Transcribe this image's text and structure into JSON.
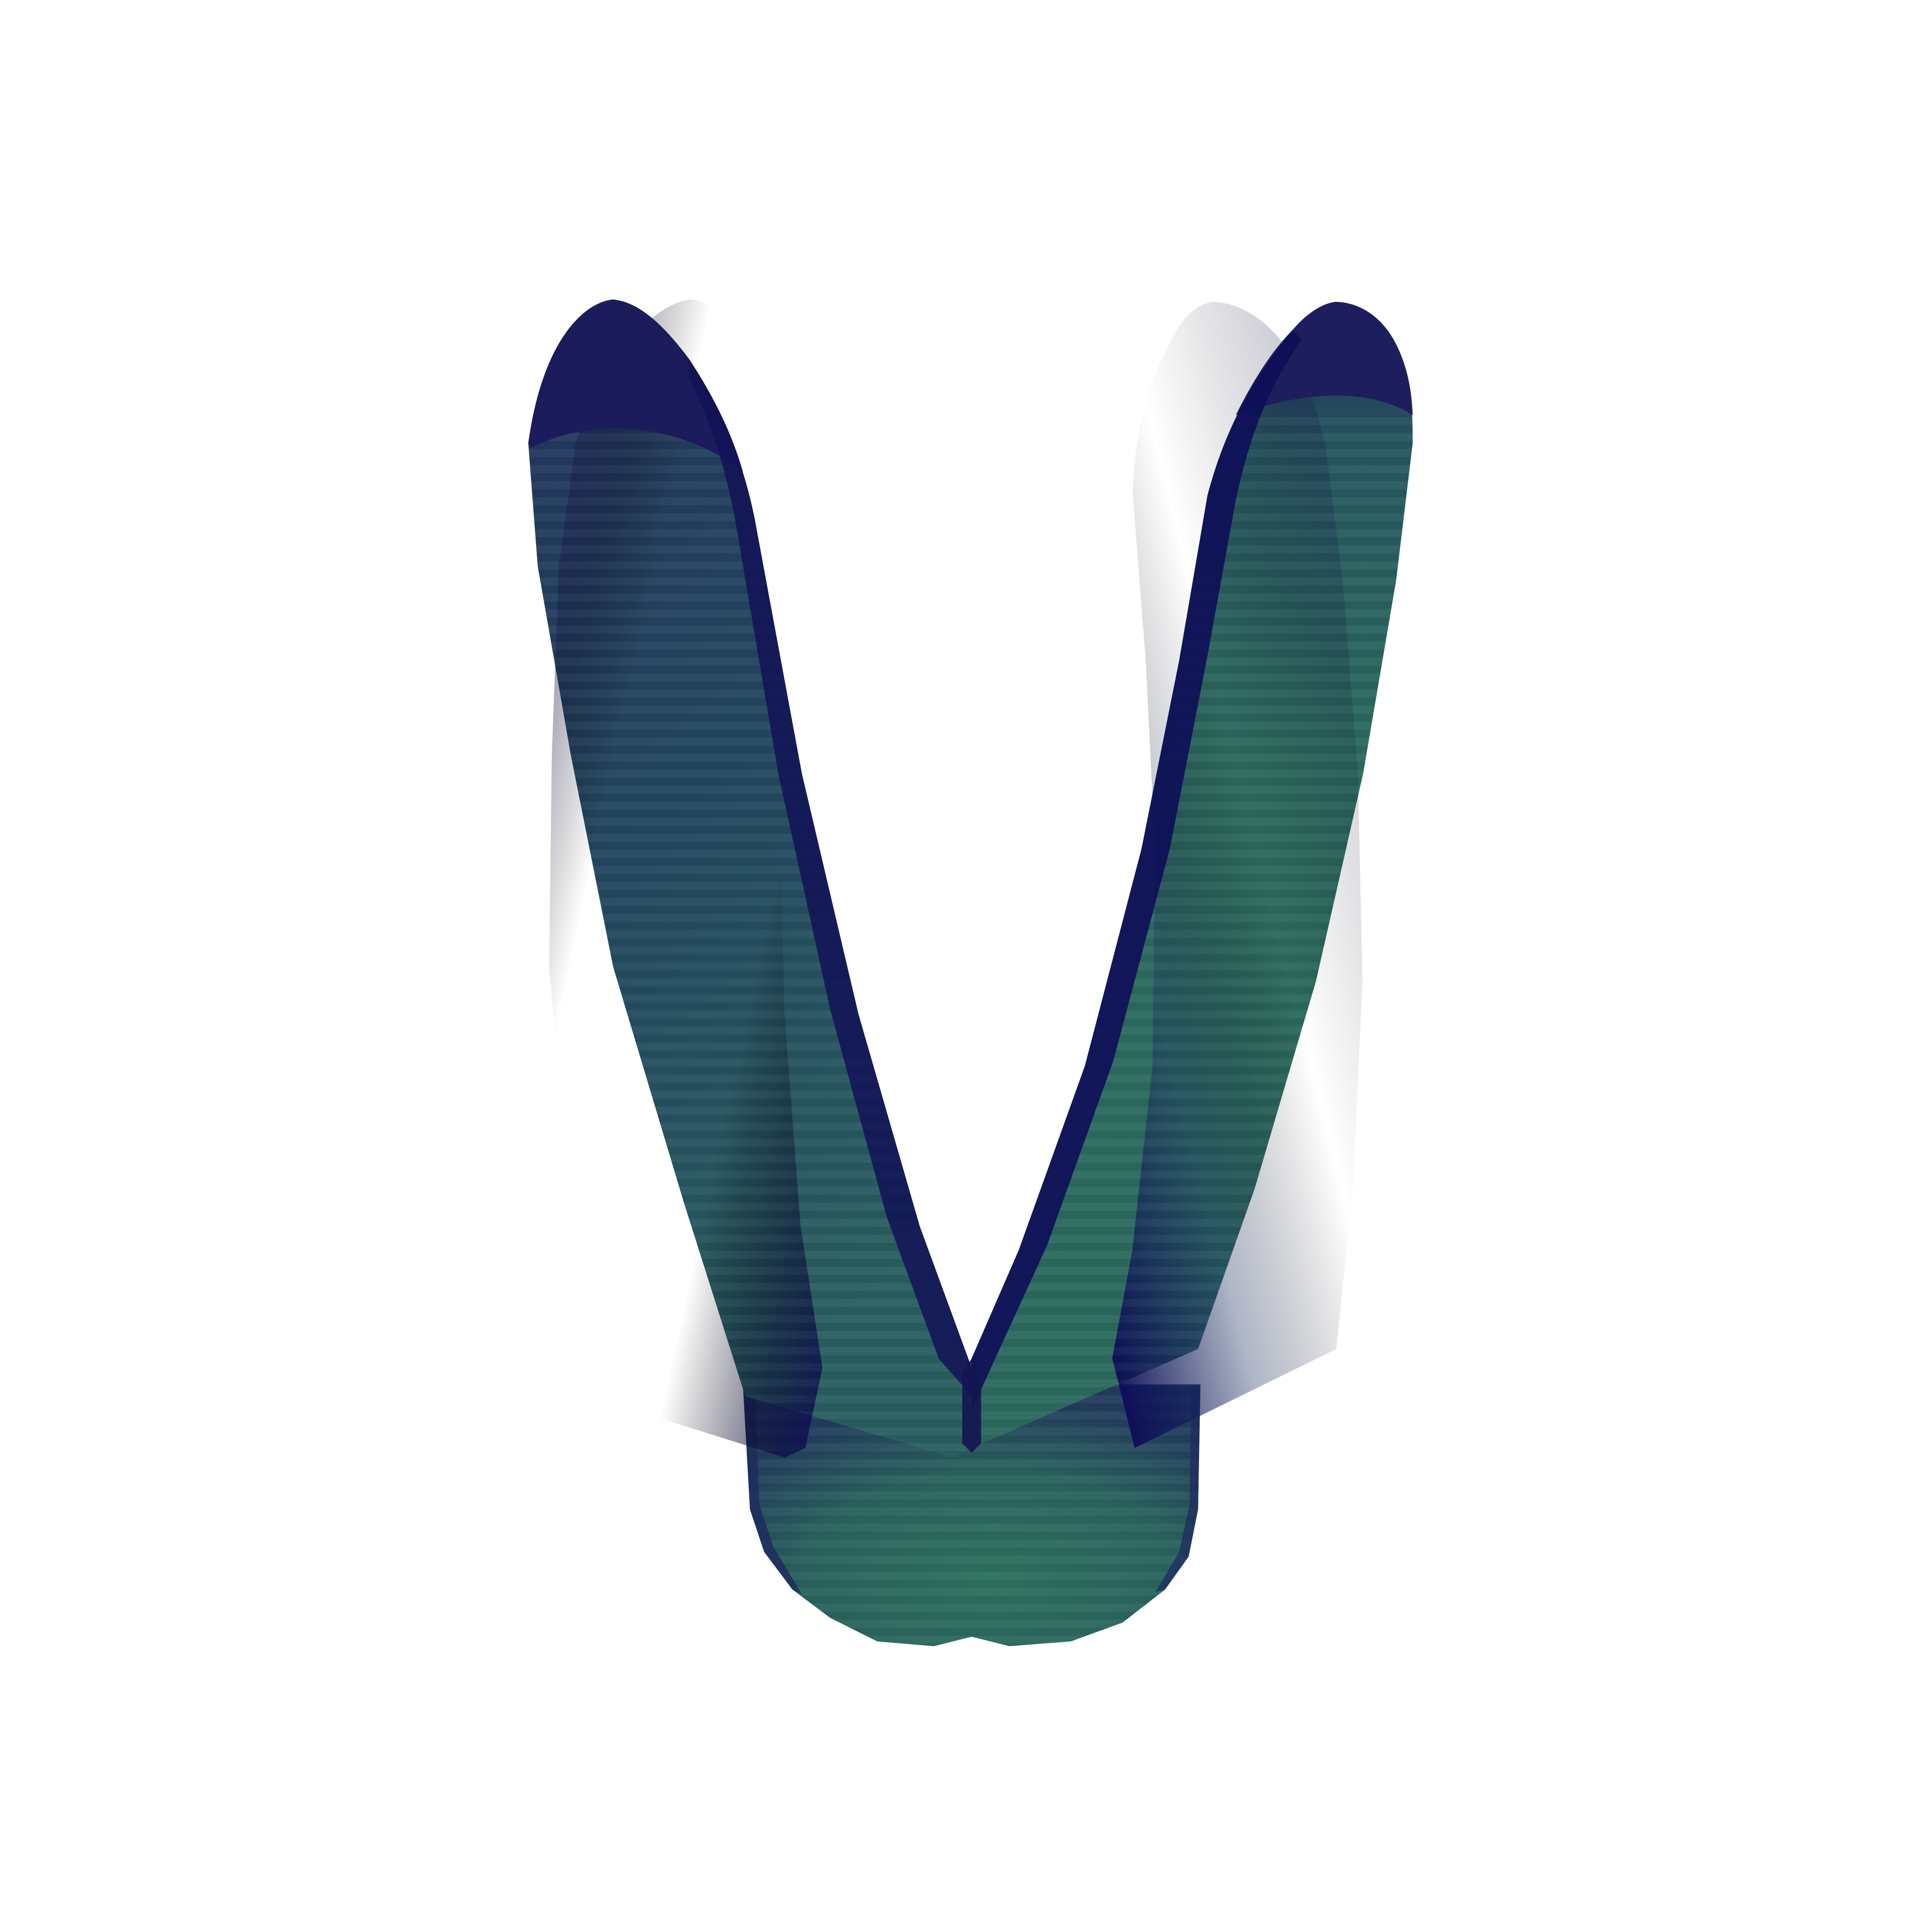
{
  "scene": {
    "shape": "V",
    "background_color": "#ffffff",
    "colors": {
      "dark_navy": "#16164f",
      "navy_edge": "#0d0d55",
      "teal": "#2a6a5e",
      "teal_light": "#2f735f",
      "slate": "#263e5e"
    },
    "banding": true
  }
}
